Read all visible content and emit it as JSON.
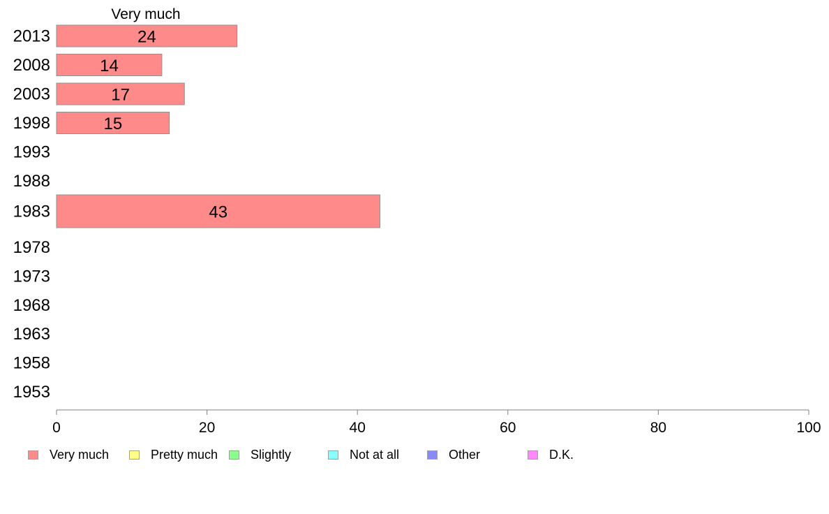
{
  "chart_data": {
    "type": "bar",
    "orientation": "horizontal",
    "title": "Very much",
    "categories": [
      "2013",
      "2008",
      "2003",
      "1998",
      "1993",
      "1988",
      "1983",
      "1978",
      "1973",
      "1968",
      "1963",
      "1958",
      "1953"
    ],
    "series": [
      {
        "name": "Very much",
        "color": "#ff8a8a",
        "values": [
          24,
          14,
          17,
          15,
          null,
          null,
          43,
          null,
          null,
          null,
          null,
          null,
          null
        ],
        "labels": [
          "24",
          "14",
          "17",
          "15",
          "",
          "",
          "43",
          "",
          "",
          "",
          "",
          "",
          ""
        ]
      }
    ],
    "xlim": [
      0,
      100
    ],
    "xticks": [
      "0",
      "20",
      "40",
      "60",
      "80",
      "100"
    ],
    "grid": false,
    "legend_position": "bottom",
    "legend": [
      {
        "label": "Very much",
        "color": "#ff8a8a"
      },
      {
        "label": "Pretty much",
        "color": "#ffff88"
      },
      {
        "label": "Slightly",
        "color": "#88ff88"
      },
      {
        "label": "Not at all",
        "color": "#88ffff"
      },
      {
        "label": "Other",
        "color": "#8888ff"
      },
      {
        "label": "D.K.",
        "color": "#ff88ff"
      }
    ]
  }
}
